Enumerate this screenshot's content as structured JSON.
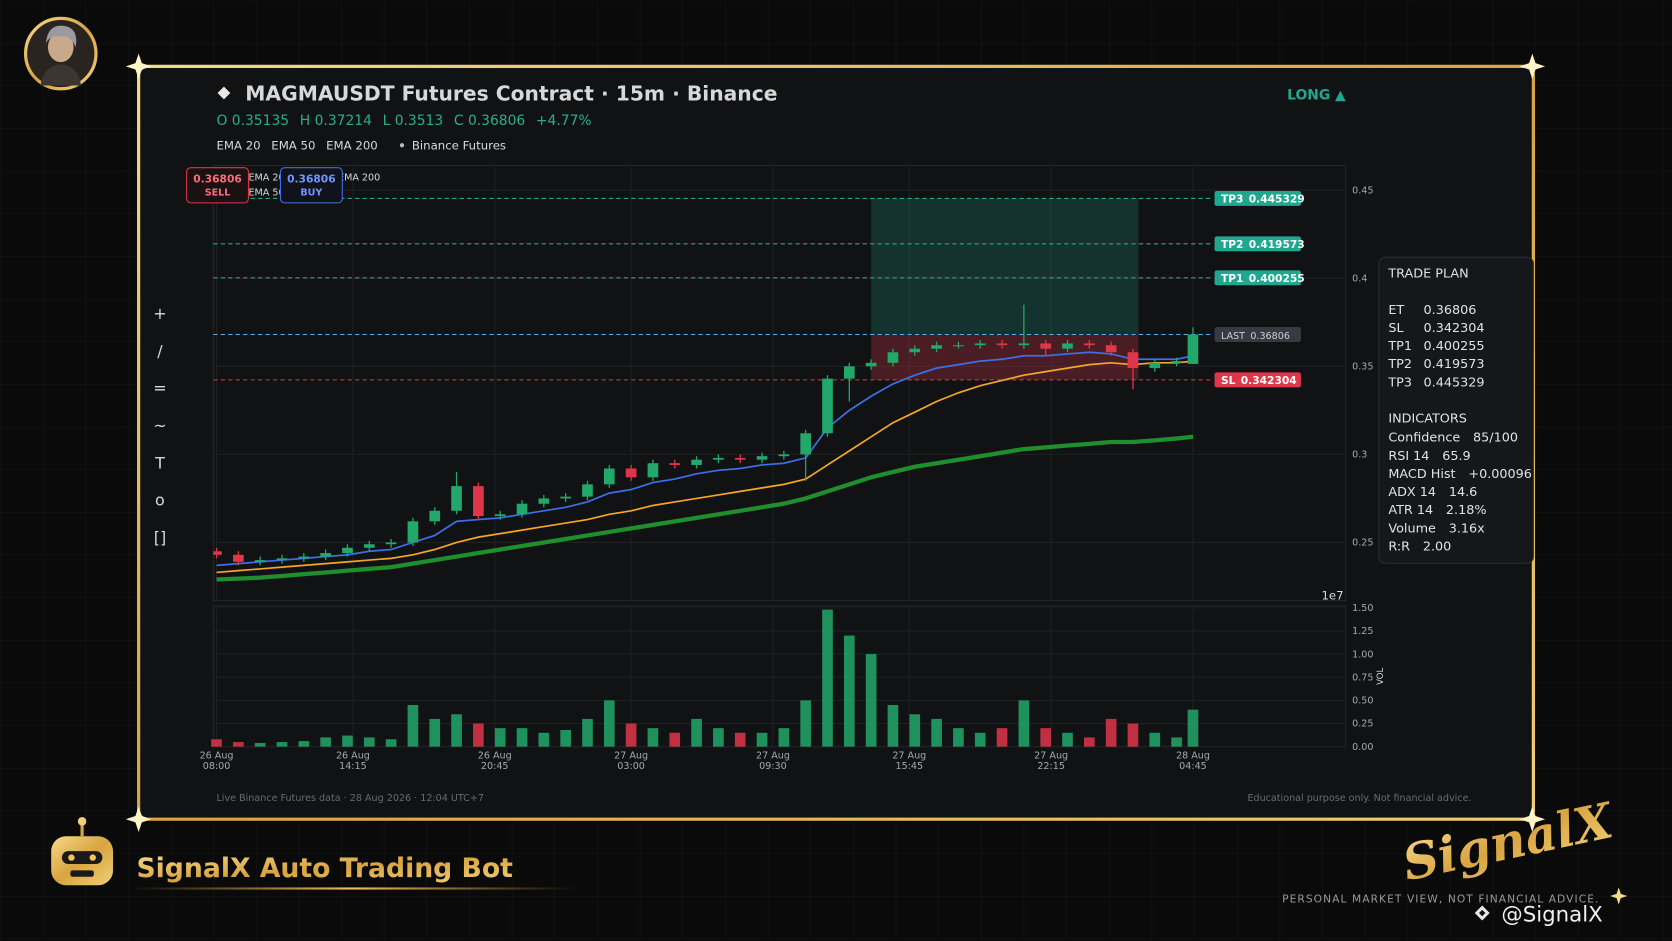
{
  "header": {
    "title": "MAGMAUSDT Futures Contract · 15m · Binance",
    "ohlc": [
      "O 0.35135",
      "H 0.37214",
      "L 0.3513",
      "C 0.36806",
      "+4.77%"
    ],
    "source": "Binance Futures",
    "side": "LONG ▲"
  },
  "order_buttons": {
    "sell_price": "0.36806",
    "sell": "SELL",
    "buy_price": "0.36806",
    "buy": "BUY"
  },
  "toolbar": [
    "+",
    "/",
    "=",
    "~",
    "T",
    "o",
    "[]"
  ],
  "chart_data": {
    "type": "candlestick",
    "x": [
      0,
      4,
      8,
      12,
      16,
      20,
      24,
      28,
      32,
      36,
      40,
      44,
      48,
      52,
      56,
      60,
      64,
      68,
      72,
      76,
      80,
      84,
      88,
      92,
      96,
      100,
      104,
      108,
      112,
      116,
      120,
      124,
      128,
      132,
      136,
      140,
      144,
      148,
      152,
      156,
      160,
      164,
      168,
      172,
      176,
      179
    ],
    "open": [
      0.245,
      0.243,
      0.239,
      0.24,
      0.241,
      0.242,
      0.244,
      0.247,
      0.249,
      0.25,
      0.262,
      0.268,
      0.282,
      0.265,
      0.266,
      0.272,
      0.275,
      0.276,
      0.283,
      0.292,
      0.287,
      0.295,
      0.294,
      0.297,
      0.298,
      0.297,
      0.299,
      0.3,
      0.312,
      0.343,
      0.35,
      0.352,
      0.358,
      0.36,
      0.362,
      0.362,
      0.363,
      0.362,
      0.363,
      0.36,
      0.363,
      0.362,
      0.358,
      0.349,
      0.352,
      0.35135
    ],
    "high": [
      0.247,
      0.245,
      0.242,
      0.243,
      0.244,
      0.246,
      0.249,
      0.251,
      0.252,
      0.264,
      0.27,
      0.29,
      0.284,
      0.268,
      0.274,
      0.277,
      0.278,
      0.285,
      0.294,
      0.294,
      0.297,
      0.297,
      0.299,
      0.3,
      0.3,
      0.301,
      0.302,
      0.314,
      0.345,
      0.352,
      0.354,
      0.36,
      0.362,
      0.364,
      0.364,
      0.365,
      0.365,
      0.385,
      0.365,
      0.365,
      0.365,
      0.364,
      0.36,
      0.354,
      0.355,
      0.37214
    ],
    "low": [
      0.241,
      0.237,
      0.237,
      0.238,
      0.239,
      0.24,
      0.242,
      0.245,
      0.247,
      0.248,
      0.26,
      0.266,
      0.263,
      0.263,
      0.264,
      0.27,
      0.273,
      0.274,
      0.281,
      0.285,
      0.285,
      0.292,
      0.292,
      0.295,
      0.295,
      0.295,
      0.297,
      0.285,
      0.31,
      0.33,
      0.348,
      0.35,
      0.356,
      0.358,
      0.36,
      0.36,
      0.36,
      0.36,
      0.356,
      0.358,
      0.36,
      0.356,
      0.337,
      0.347,
      0.35,
      0.3513
    ],
    "close": [
      0.243,
      0.239,
      0.24,
      0.241,
      0.242,
      0.244,
      0.247,
      0.249,
      0.25,
      0.262,
      0.268,
      0.282,
      0.265,
      0.266,
      0.272,
      0.275,
      0.276,
      0.283,
      0.292,
      0.287,
      0.295,
      0.294,
      0.297,
      0.298,
      0.297,
      0.299,
      0.3,
      0.312,
      0.343,
      0.35,
      0.352,
      0.358,
      0.36,
      0.362,
      0.362,
      0.363,
      0.362,
      0.363,
      0.36,
      0.363,
      0.362,
      0.358,
      0.349,
      0.352,
      0.353,
      0.36806
    ],
    "volume": [
      0.08,
      0.05,
      0.04,
      0.05,
      0.06,
      0.1,
      0.12,
      0.1,
      0.08,
      0.45,
      0.3,
      0.35,
      0.25,
      0.2,
      0.2,
      0.15,
      0.18,
      0.3,
      0.5,
      0.25,
      0.2,
      0.15,
      0.3,
      0.2,
      0.15,
      0.15,
      0.2,
      0.5,
      1.48,
      1.2,
      1.0,
      0.45,
      0.35,
      0.3,
      0.2,
      0.15,
      0.2,
      0.5,
      0.2,
      0.15,
      0.1,
      0.3,
      0.25,
      0.15,
      0.1,
      0.4
    ],
    "candle_colors": {
      "up": "#22a86a",
      "down": "#e0364a"
    },
    "series": [
      {
        "name": "EMA 20",
        "color": "#3f6fe8",
        "values": [
          0.237,
          0.238,
          0.239,
          0.24,
          0.241,
          0.242,
          0.243,
          0.245,
          0.246,
          0.25,
          0.254,
          0.262,
          0.263,
          0.264,
          0.266,
          0.268,
          0.27,
          0.273,
          0.278,
          0.28,
          0.284,
          0.286,
          0.289,
          0.291,
          0.292,
          0.294,
          0.295,
          0.298,
          0.315,
          0.325,
          0.333,
          0.34,
          0.345,
          0.349,
          0.351,
          0.353,
          0.354,
          0.356,
          0.356,
          0.357,
          0.358,
          0.357,
          0.354,
          0.354,
          0.354,
          0.356
        ]
      },
      {
        "name": "EMA 50",
        "color": "#f5a623",
        "values": [
          0.233,
          0.234,
          0.235,
          0.236,
          0.237,
          0.238,
          0.239,
          0.24,
          0.241,
          0.243,
          0.246,
          0.25,
          0.253,
          0.255,
          0.257,
          0.259,
          0.261,
          0.263,
          0.266,
          0.268,
          0.271,
          0.273,
          0.275,
          0.277,
          0.279,
          0.281,
          0.283,
          0.286,
          0.294,
          0.302,
          0.31,
          0.318,
          0.324,
          0.33,
          0.335,
          0.339,
          0.342,
          0.345,
          0.347,
          0.349,
          0.351,
          0.352,
          0.351,
          0.352,
          0.352,
          0.353
        ]
      },
      {
        "name": "EMA 200",
        "color": "#1f8f2e",
        "values": [
          0.229,
          0.2295,
          0.23,
          0.231,
          0.232,
          0.233,
          0.234,
          0.235,
          0.236,
          0.238,
          0.24,
          0.242,
          0.244,
          0.246,
          0.248,
          0.25,
          0.252,
          0.254,
          0.256,
          0.258,
          0.26,
          0.262,
          0.264,
          0.266,
          0.268,
          0.27,
          0.272,
          0.275,
          0.279,
          0.283,
          0.287,
          0.29,
          0.293,
          0.295,
          0.297,
          0.299,
          0.301,
          0.303,
          0.304,
          0.305,
          0.306,
          0.307,
          0.307,
          0.308,
          0.309,
          0.31
        ]
      }
    ],
    "xlim": [
      -0.6,
      207
    ],
    "xticks": [
      {
        "value": 0,
        "label": [
          "26 Aug",
          "08:00"
        ]
      },
      {
        "value": 25,
        "label": [
          "26 Aug",
          "14:15"
        ]
      },
      {
        "value": 51,
        "label": [
          "26 Aug",
          "20:45"
        ]
      },
      {
        "value": 76,
        "label": [
          "27 Aug",
          "03:00"
        ]
      },
      {
        "value": 102,
        "label": [
          "27 Aug",
          "09:30"
        ]
      },
      {
        "value": 127,
        "label": [
          "27 Aug",
          "15:45"
        ]
      },
      {
        "value": 153,
        "label": [
          "27 Aug",
          "22:15"
        ]
      },
      {
        "value": 179,
        "label": [
          "28 Aug",
          "04:45"
        ]
      }
    ],
    "ylim": [
      0.217,
      0.464
    ],
    "yticks": [
      0.25,
      0.3,
      0.35,
      0.4,
      0.45
    ],
    "y_offset_label": "1e7",
    "grid": true,
    "volume_ylim": [
      0,
      1.52
    ],
    "volume_yticks": [
      {
        "value": 0,
        "label": "0.00"
      },
      {
        "value": 0.25,
        "label": "0.25"
      },
      {
        "value": 0.5,
        "label": "0.50"
      },
      {
        "value": 0.75,
        "label": "0.75"
      },
      {
        "value": 1,
        "label": "1.00"
      },
      {
        "value": 1.25,
        "label": "1.25"
      },
      {
        "value": 1.5,
        "label": "1.50"
      }
    ],
    "volume_axis_label": "VOL",
    "levels": [
      {
        "name": "TP3",
        "value": 0.445329,
        "color": "#1fa88f"
      },
      {
        "name": "TP2",
        "value": 0.419573,
        "color": "#1fa88f"
      },
      {
        "name": "TP1",
        "value": 0.400255,
        "color": "#1fa88f"
      },
      {
        "name": "LAST",
        "value": 0.36806,
        "color": "#5ab0e0"
      },
      {
        "name": "SL",
        "value": 0.342304,
        "color": "#e0364a"
      }
    ],
    "zone_x": [
      120,
      169
    ]
  },
  "trade_plan": {
    "title": "TRADE PLAN",
    "rows": [
      [
        "ET",
        "0.36806"
      ],
      [
        "SL",
        "0.342304"
      ],
      [
        "TP1",
        "0.400255"
      ],
      [
        "TP2",
        "0.419573"
      ],
      [
        "TP3",
        "0.445329"
      ]
    ],
    "indicators_title": "INDICATORS",
    "indicators": [
      [
        "Confidence",
        "85/100"
      ],
      [
        "RSI 14",
        "65.9"
      ],
      [
        "MACD Hist",
        "+0.00096"
      ],
      [
        "ADX 14",
        "14.6"
      ],
      [
        "ATR 14",
        "2.18%"
      ],
      [
        "Volume",
        "3.16x"
      ],
      [
        "R:R",
        "2.00"
      ]
    ]
  },
  "footer": {
    "left": "Live Binance Futures data  ·  28 Aug 2026 · 12:04 UTC+7",
    "right": "Educational purpose only. Not financial advice."
  },
  "branding": {
    "bot_name": "SignalX Auto Trading Bot",
    "logo": "SignalX",
    "disclaimer": "PERSONAL MARKET VIEW, NOT FINANCIAL ADVICE.",
    "handle": "@SignalX"
  }
}
